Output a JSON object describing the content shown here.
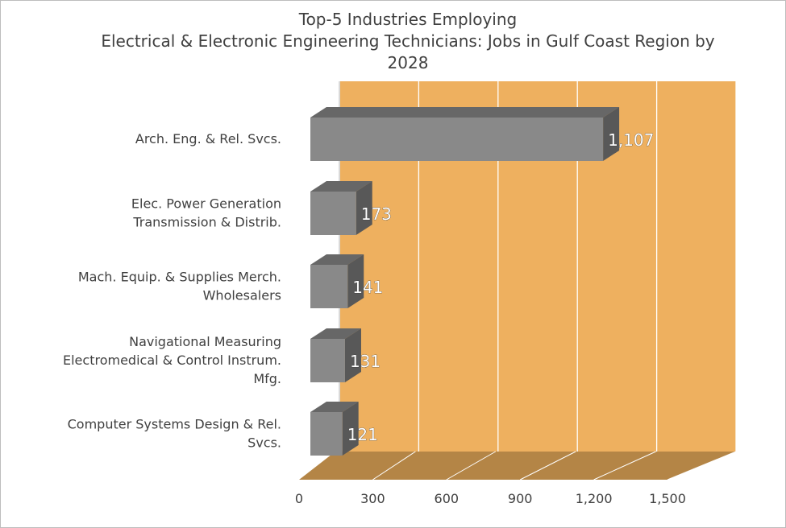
{
  "chart_data": {
    "type": "bar",
    "orientation": "horizontal",
    "style": "3d",
    "title": "Top-5 Industries Employing\nElectrical & Electronic Engineering Technicians: Jobs in Gulf Coast Region by\n2028",
    "categories": [
      [
        "Arch. Eng. & Rel. Svcs."
      ],
      [
        "Elec. Power Generation",
        "Transmission & Distrib."
      ],
      [
        "Mach. Equip. & Supplies Merch.",
        "Wholesalers"
      ],
      [
        "Navigational Measuring",
        "Electromedical & Control Instrum.",
        "Mfg."
      ],
      [
        "Computer Systems Design & Rel.",
        "Svcs."
      ]
    ],
    "values": [
      1107,
      173,
      141,
      131,
      121
    ],
    "data_labels": [
      "1,107",
      "173",
      "141",
      "131",
      "121"
    ],
    "xlim": [
      0,
      1500
    ],
    "ticks": [
      0,
      300,
      600,
      900,
      1200,
      1500
    ],
    "tick_labels": [
      "0",
      "300",
      "600",
      "900",
      "1,200",
      "1,500"
    ],
    "grid": true,
    "colors": {
      "bar_front": "#898989",
      "bar_top": "#676767",
      "bar_side": "#585858",
      "wall": "#eeb05f",
      "floor": "#b48546",
      "grid": "#ffffff"
    }
  }
}
